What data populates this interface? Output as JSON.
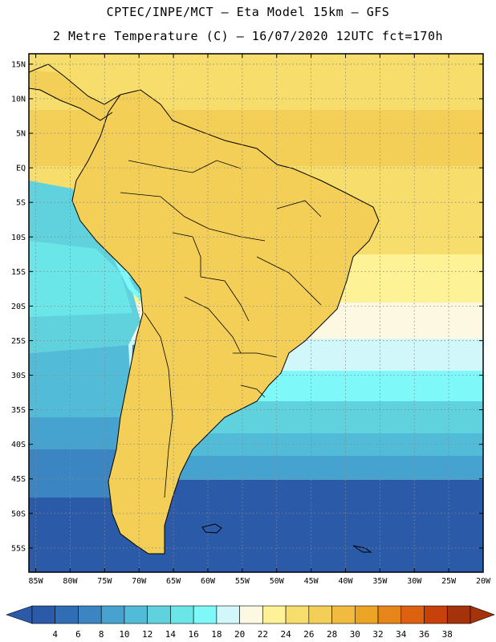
{
  "header": {
    "line1": "CPTEC/INPE/MCT –  Eta Model 15km – GFS",
    "line2": "2 Metre Temperature (C) – 16/07/2020 12UTC fct=170h"
  },
  "map": {
    "lat_labels": [
      "15N",
      "10N",
      "5N",
      "EQ",
      "5S",
      "10S",
      "15S",
      "20S",
      "25S",
      "30S",
      "35S",
      "40S",
      "45S",
      "50S",
      "55S"
    ],
    "lon_labels": [
      "85W",
      "80W",
      "75W",
      "70W",
      "65W",
      "60W",
      "55W",
      "50W",
      "45W",
      "40W",
      "35W",
      "30W",
      "25W",
      "20W"
    ],
    "lat_range": [
      16.5,
      -58.5
    ],
    "lon_range": [
      -86,
      -20
    ]
  },
  "colorbar": {
    "labels": [
      "4",
      "6",
      "8",
      "10",
      "12",
      "14",
      "16",
      "18",
      "20",
      "22",
      "24",
      "26",
      "28",
      "30",
      "32",
      "34",
      "36",
      "38"
    ],
    "colors": [
      "#2a5aa8",
      "#2f6eb4",
      "#3b86c2",
      "#46a2cf",
      "#52bcd8",
      "#5fd2de",
      "#6be6e8",
      "#7ef8f8",
      "#d2f7fb",
      "#fdf8e2",
      "#fdf396",
      "#f6dd6c",
      "#f4cf58",
      "#f0bb3e",
      "#eca424",
      "#e6861a",
      "#dd6210",
      "#c8400a",
      "#a4320a"
    ],
    "low_color": "#2a5aa8",
    "high_color": "#a4320a"
  }
}
